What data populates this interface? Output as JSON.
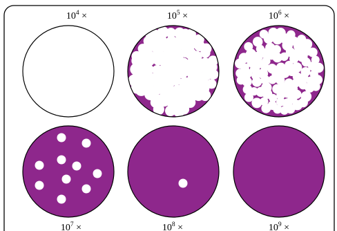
{
  "colors": {
    "plate_fill": "#8e278c",
    "plaque_fill": "#ffffff",
    "outline": "#000000",
    "frame": "#000000",
    "background": "#ffffff"
  },
  "plates": [
    {
      "label_base": "10",
      "label_exp": "4",
      "label_suffix": " ×",
      "fill_state": "clear"
    },
    {
      "label_base": "10",
      "label_exp": "5",
      "label_suffix": " ×",
      "fill_state": "mostly-cleared"
    },
    {
      "label_base": "10",
      "label_exp": "6",
      "label_suffix": " ×",
      "fill_state": "many-plaques"
    },
    {
      "label_base": "10",
      "label_exp": "7",
      "label_suffix": " ×",
      "fill_state": "few-plaques",
      "plaque_count": 10
    },
    {
      "label_base": "10",
      "label_exp": "8",
      "label_suffix": " ×",
      "fill_state": "one-plaque",
      "plaque_count": 1
    },
    {
      "label_base": "10",
      "label_exp": "9",
      "label_suffix": " ×",
      "fill_state": "no-plaques",
      "plaque_count": 0
    }
  ]
}
